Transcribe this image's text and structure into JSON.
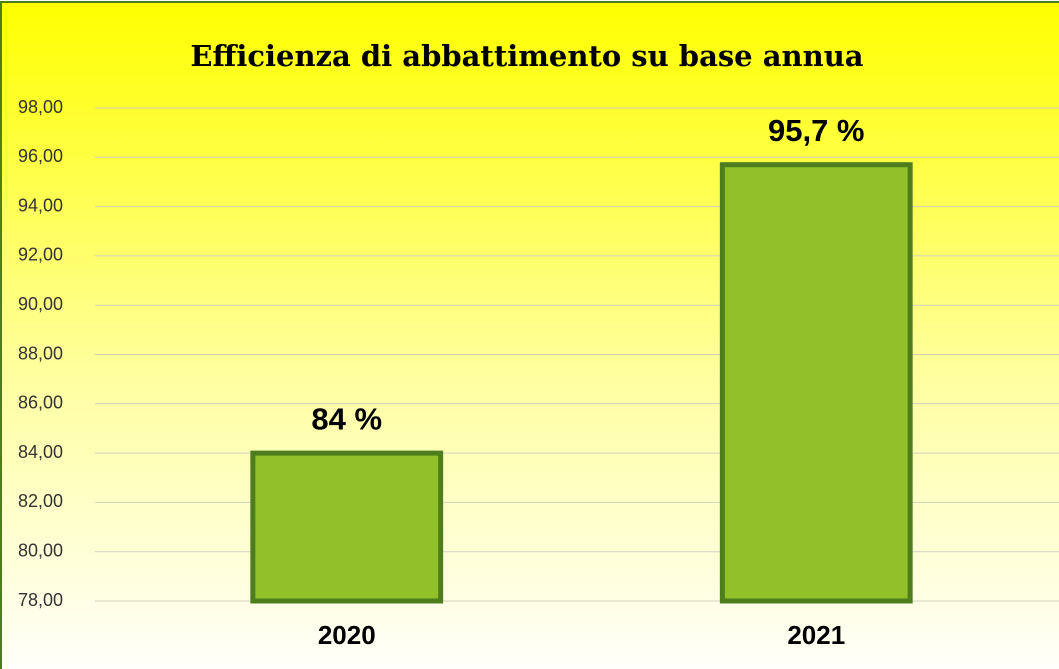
{
  "chart_data": {
    "type": "bar",
    "title": "Efficienza  di abbattimento su base annua",
    "categories": [
      "2020",
      "2021"
    ],
    "values": [
      84,
      95.7
    ],
    "value_labels": [
      "84 %",
      "95,7 %"
    ],
    "color": "#92c02a",
    "ylim": [
      78,
      98
    ],
    "yticks": [
      {
        "value": 78,
        "label": "78,00"
      },
      {
        "value": 80,
        "label": "80,00"
      },
      {
        "value": 82,
        "label": "82,00"
      },
      {
        "value": 84,
        "label": "84,00"
      },
      {
        "value": 86,
        "label": "86,00"
      },
      {
        "value": 88,
        "label": "88,00"
      },
      {
        "value": 90,
        "label": "90,00"
      },
      {
        "value": 92,
        "label": "92,00"
      },
      {
        "value": 94,
        "label": "94,00"
      },
      {
        "value": 96,
        "label": "96,00"
      },
      {
        "value": 98,
        "label": "98,00"
      }
    ],
    "grid": true
  }
}
